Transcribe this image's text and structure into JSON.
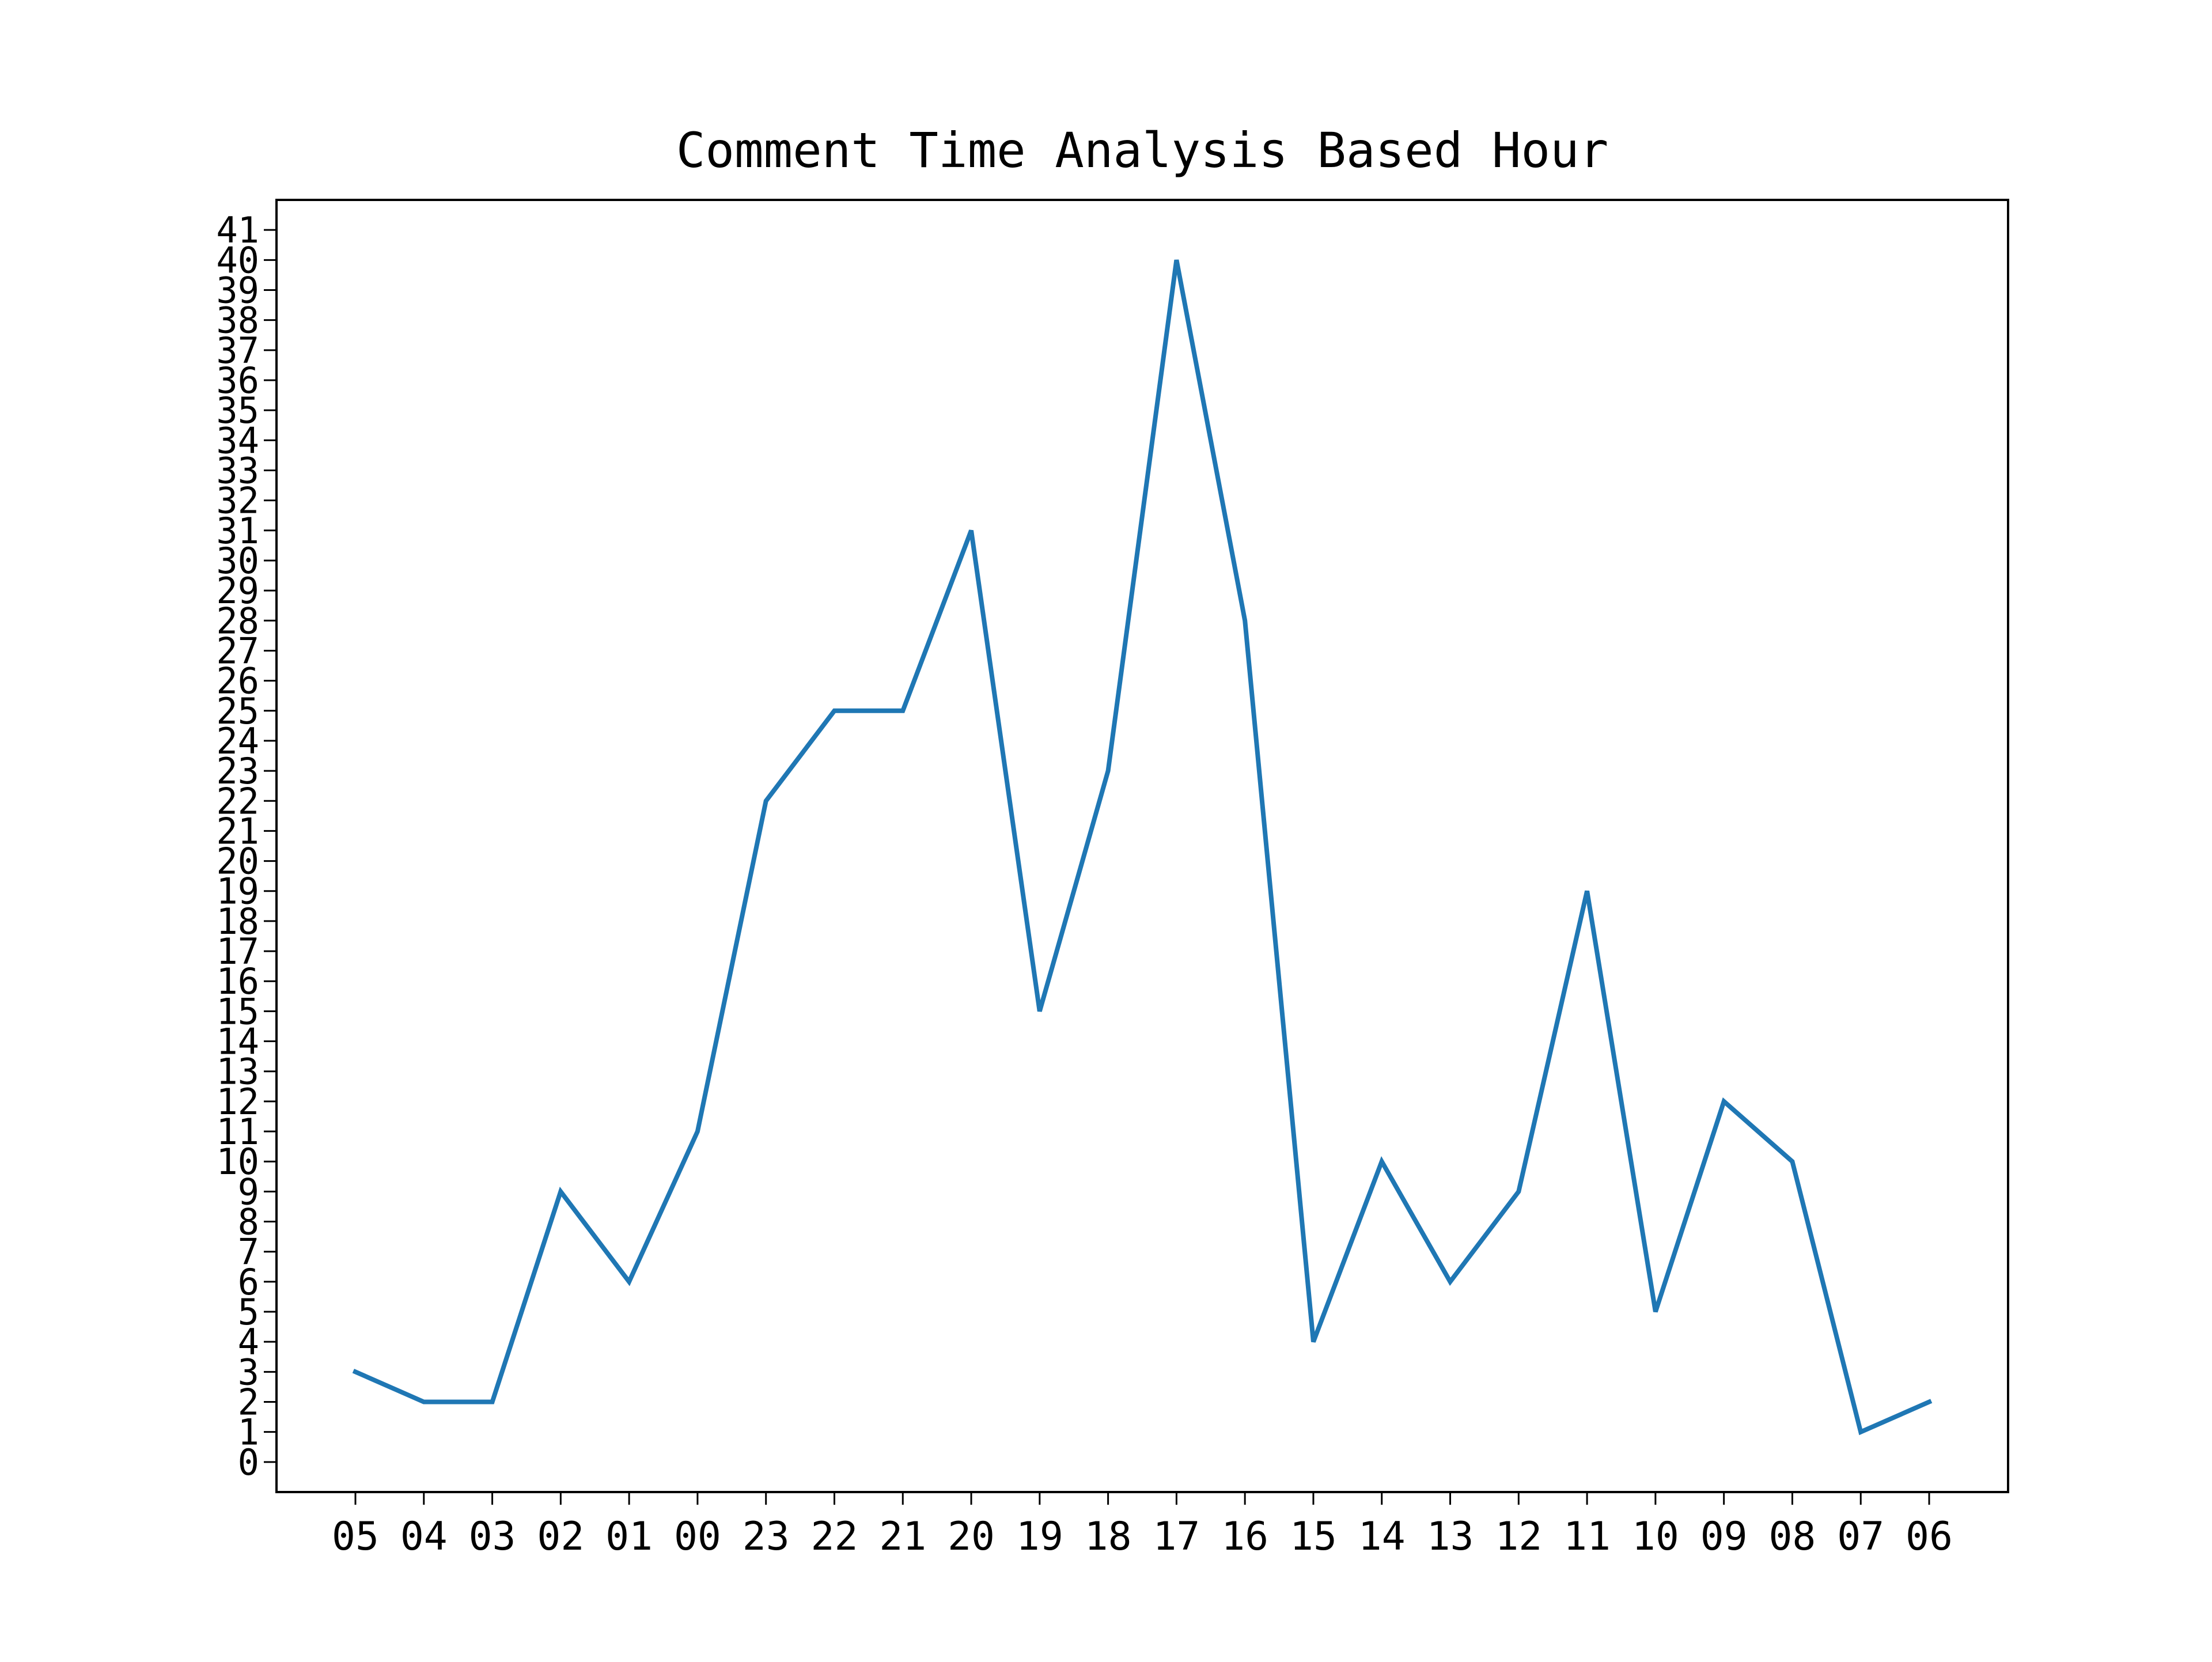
{
  "chart_data": {
    "type": "line",
    "title": "Comment Time Analysis Based Hour",
    "xlabel": "",
    "ylabel": "",
    "categories": [
      "05",
      "04",
      "03",
      "02",
      "01",
      "00",
      "23",
      "22",
      "21",
      "20",
      "19",
      "18",
      "17",
      "16",
      "15",
      "14",
      "13",
      "12",
      "11",
      "10",
      "09",
      "08",
      "07",
      "06"
    ],
    "series": [
      {
        "values": [
          3,
          2,
          2,
          9,
          6,
          11,
          22,
          25,
          25,
          31,
          15,
          23,
          40,
          28,
          4,
          10,
          6,
          9,
          19,
          5,
          12,
          10,
          1,
          2
        ]
      }
    ],
    "y_ticks": [
      0,
      1,
      2,
      3,
      4,
      5,
      6,
      7,
      8,
      9,
      10,
      11,
      12,
      13,
      14,
      15,
      16,
      17,
      18,
      19,
      20,
      21,
      22,
      23,
      24,
      25,
      26,
      27,
      28,
      29,
      30,
      31,
      32,
      33,
      34,
      35,
      36,
      37,
      38,
      39,
      40,
      41
    ],
    "ylim": [
      -1,
      42
    ],
    "grid": false,
    "legend": "none",
    "colors": {
      "line": "#1f77b4",
      "axes": "#000000",
      "background": "#ffffff"
    }
  }
}
